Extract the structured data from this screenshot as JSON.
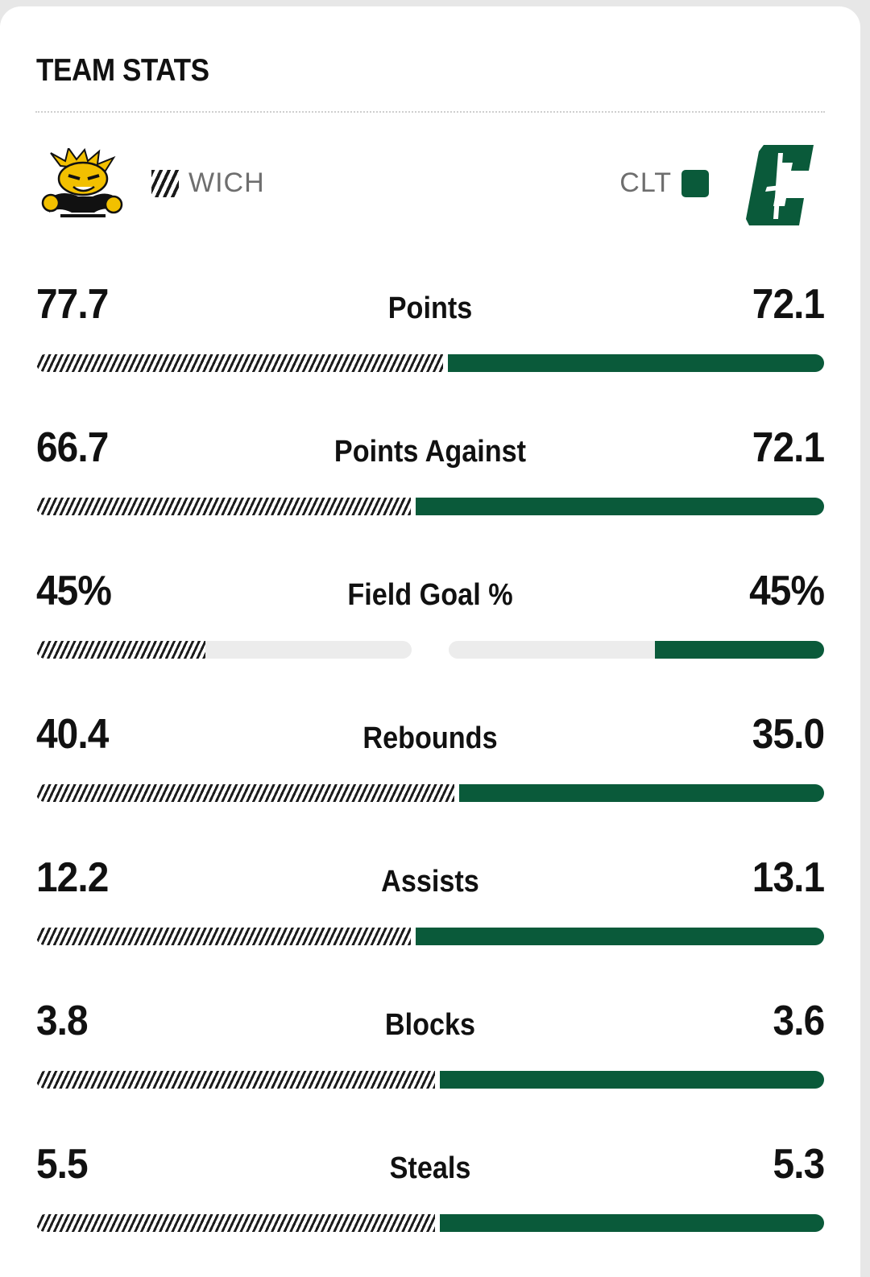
{
  "section": {
    "title": "TEAM STATS"
  },
  "teams": {
    "away": {
      "abbr": "WICH",
      "logo": "wichita-state-shocker-logo",
      "pattern": "hatched"
    },
    "home": {
      "abbr": "CLT",
      "logo": "charlotte-c-logo",
      "color": "#0a5a3a"
    }
  },
  "colors": {
    "home_bar": "#0a5a3a",
    "away_bar": "#1c1c1c",
    "track": "#ececec"
  },
  "stats": [
    {
      "label": "Points",
      "away": "77.7",
      "home": "72.1",
      "away_share": 0.52,
      "home_share": 0.48,
      "mode": "share"
    },
    {
      "label": "Points Against",
      "away": "66.7",
      "home": "72.1",
      "away_share": 0.48,
      "home_share": 0.52,
      "mode": "share"
    },
    {
      "label": "Field Goal %",
      "away": "45%",
      "home": "45%",
      "away_share": 0.45,
      "home_share": 0.45,
      "mode": "percent"
    },
    {
      "label": "Rebounds",
      "away": "40.4",
      "home": "35.0",
      "away_share": 0.535,
      "home_share": 0.465,
      "mode": "share"
    },
    {
      "label": "Assists",
      "away": "12.2",
      "home": "13.1",
      "away_share": 0.48,
      "home_share": 0.52,
      "mode": "share"
    },
    {
      "label": "Blocks",
      "away": "3.8",
      "home": "3.6",
      "away_share": 0.51,
      "home_share": 0.49,
      "mode": "share"
    },
    {
      "label": "Steals",
      "away": "5.5",
      "home": "5.3",
      "away_share": 0.51,
      "home_share": 0.49,
      "mode": "share"
    }
  ]
}
